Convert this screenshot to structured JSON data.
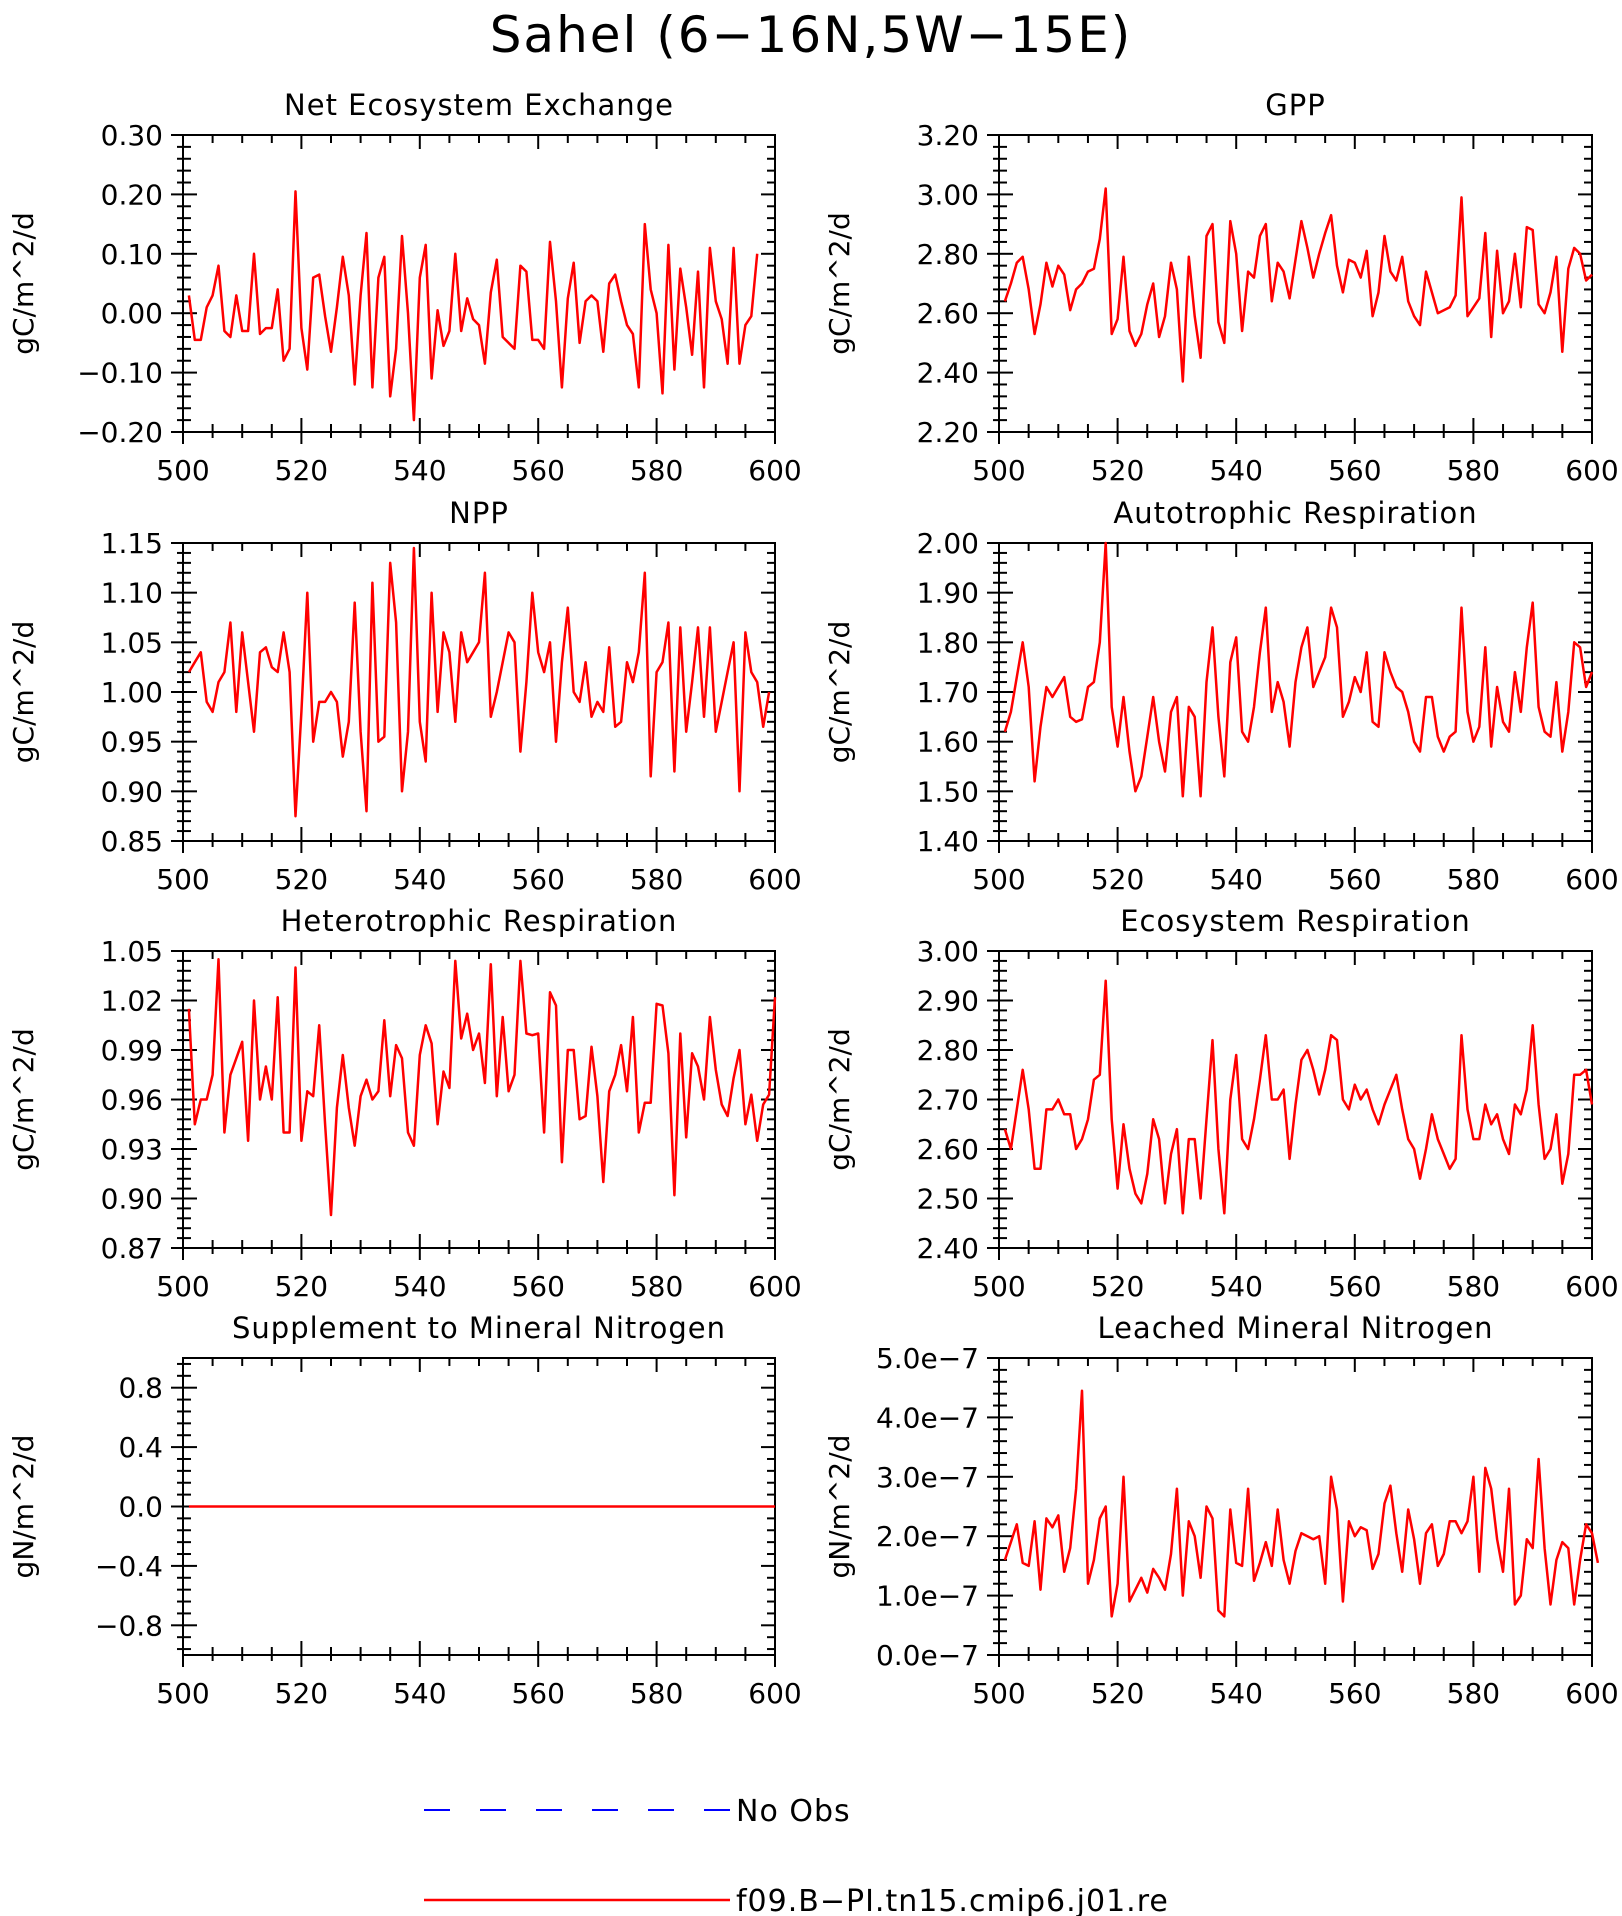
{
  "page_title": "Sahel (6−16N,5W−15E)",
  "legend": [
    {
      "label": "No Obs",
      "color": "#0000ff",
      "dash": true
    },
    {
      "label": "f09.B−PI.tn15.cmip6.j01.re",
      "color": "#ff0000",
      "dash": false
    }
  ],
  "chart_data": [
    {
      "type": "line",
      "title": "Net Ecosystem Exchange",
      "ylabel": "gC/m^2/d",
      "xlim": [
        500,
        600
      ],
      "ylim": [
        -0.2,
        0.3
      ],
      "xticks": [
        500,
        520,
        540,
        560,
        580,
        600
      ],
      "yticks": [
        -0.2,
        -0.1,
        0.0,
        0.1,
        0.2,
        0.3
      ],
      "ytick_labels": [
        "−0.20",
        "−0.10",
        "0.00",
        "0.10",
        "0.20",
        "0.30"
      ],
      "series": [
        {
          "color": "#ff0000",
          "x_start": 501,
          "x_step": 1,
          "values": [
            0.03,
            -0.045,
            -0.045,
            0.01,
            0.03,
            0.08,
            -0.03,
            -0.04,
            0.03,
            -0.03,
            -0.03,
            0.1,
            -0.035,
            -0.025,
            -0.025,
            0.04,
            -0.08,
            -0.06,
            0.205,
            -0.025,
            -0.095,
            0.06,
            0.065,
            -0.005,
            -0.065,
            0.01,
            0.095,
            0.03,
            -0.12,
            0.03,
            0.135,
            -0.125,
            0.06,
            0.095,
            -0.14,
            -0.06,
            0.13,
            0.0,
            -0.18,
            0.06,
            0.115,
            -0.11,
            0.005,
            -0.055,
            -0.03,
            0.1,
            -0.03,
            0.025,
            -0.01,
            -0.02,
            -0.085,
            0.035,
            0.09,
            -0.04,
            -0.05,
            -0.06,
            0.08,
            0.07,
            -0.045,
            -0.045,
            -0.06,
            0.12,
            0.02,
            -0.125,
            0.025,
            0.085,
            -0.05,
            0.02,
            0.03,
            0.02,
            -0.065,
            0.05,
            0.065,
            0.02,
            -0.02,
            -0.035,
            -0.125,
            0.15,
            0.04,
            0.0,
            -0.135,
            0.115,
            -0.095,
            0.075,
            0.01,
            -0.07,
            0.07,
            -0.125,
            0.11,
            0.02,
            -0.01,
            -0.085,
            0.11,
            -0.085,
            -0.02,
            -0.005,
            0.1
          ]
        }
      ]
    },
    {
      "type": "line",
      "title": "GPP",
      "ylabel": "gC/m^2/d",
      "xlim": [
        500,
        600
      ],
      "ylim": [
        2.2,
        3.2
      ],
      "xticks": [
        500,
        520,
        540,
        560,
        580,
        600
      ],
      "yticks": [
        2.2,
        2.4,
        2.6,
        2.8,
        3.0,
        3.2
      ],
      "ytick_labels": [
        "2.20",
        "2.40",
        "2.60",
        "2.80",
        "3.00",
        "3.20"
      ],
      "series": [
        {
          "color": "#ff0000",
          "x_start": 501,
          "x_step": 1,
          "values": [
            2.64,
            2.7,
            2.77,
            2.79,
            2.68,
            2.53,
            2.63,
            2.77,
            2.69,
            2.76,
            2.73,
            2.61,
            2.68,
            2.7,
            2.74,
            2.75,
            2.85,
            3.02,
            2.53,
            2.58,
            2.79,
            2.54,
            2.49,
            2.53,
            2.63,
            2.7,
            2.52,
            2.59,
            2.77,
            2.68,
            2.37,
            2.79,
            2.59,
            2.45,
            2.86,
            2.9,
            2.57,
            2.5,
            2.91,
            2.8,
            2.54,
            2.74,
            2.72,
            2.86,
            2.9,
            2.64,
            2.77,
            2.74,
            2.65,
            2.78,
            2.91,
            2.82,
            2.72,
            2.8,
            2.87,
            2.93,
            2.76,
            2.67,
            2.78,
            2.77,
            2.72,
            2.81,
            2.59,
            2.67,
            2.86,
            2.74,
            2.71,
            2.79,
            2.64,
            2.59,
            2.56,
            2.74,
            2.67,
            2.6,
            2.61,
            2.62,
            2.66,
            2.99,
            2.59,
            2.62,
            2.65,
            2.87,
            2.52,
            2.81,
            2.6,
            2.64,
            2.8,
            2.62,
            2.89,
            2.88,
            2.63,
            2.6,
            2.67,
            2.79,
            2.47,
            2.75,
            2.82,
            2.8,
            2.71,
            2.73
          ]
        }
      ]
    },
    {
      "type": "line",
      "title": "NPP",
      "ylabel": "gC/m^2/d",
      "xlim": [
        500,
        600
      ],
      "ylim": [
        0.85,
        1.15
      ],
      "xticks": [
        500,
        520,
        540,
        560,
        580,
        600
      ],
      "yticks": [
        0.85,
        0.9,
        0.95,
        1.0,
        1.05,
        1.1,
        1.15
      ],
      "ytick_labels": [
        "0.85",
        "0.90",
        "0.95",
        "1.00",
        "1.05",
        "1.10",
        "1.15"
      ],
      "series": [
        {
          "color": "#ff0000",
          "x_start": 501,
          "x_step": 1,
          "values": [
            1.02,
            1.03,
            1.04,
            0.99,
            0.98,
            1.01,
            1.02,
            1.07,
            0.98,
            1.06,
            1.01,
            0.96,
            1.04,
            1.045,
            1.025,
            1.02,
            1.06,
            1.02,
            0.875,
            0.98,
            1.1,
            0.95,
            0.99,
            0.99,
            1.0,
            0.99,
            0.935,
            0.97,
            1.09,
            0.96,
            0.88,
            1.11,
            0.95,
            0.955,
            1.13,
            1.07,
            0.9,
            0.96,
            1.145,
            0.97,
            0.93,
            1.1,
            0.98,
            1.06,
            1.04,
            0.97,
            1.06,
            1.03,
            1.04,
            1.05,
            1.12,
            0.975,
            1.0,
            1.03,
            1.06,
            1.05,
            0.94,
            1.01,
            1.1,
            1.04,
            1.02,
            1.05,
            0.95,
            1.03,
            1.085,
            1.0,
            0.99,
            1.03,
            0.975,
            0.99,
            0.98,
            1.045,
            0.965,
            0.97,
            1.03,
            1.01,
            1.04,
            1.12,
            0.915,
            1.02,
            1.03,
            1.07,
            0.92,
            1.065,
            0.96,
            1.01,
            1.065,
            0.975,
            1.065,
            0.96,
            0.99,
            1.02,
            1.05,
            0.9,
            1.06,
            1.02,
            1.01,
            0.965,
            1.0
          ]
        }
      ]
    },
    {
      "type": "line",
      "title": "Autotrophic Respiration",
      "ylabel": "gC/m^2/d",
      "xlim": [
        500,
        600
      ],
      "ylim": [
        1.4,
        2.0
      ],
      "xticks": [
        500,
        520,
        540,
        560,
        580,
        600
      ],
      "yticks": [
        1.4,
        1.5,
        1.6,
        1.7,
        1.8,
        1.9,
        2.0
      ],
      "ytick_labels": [
        "1.40",
        "1.50",
        "1.60",
        "1.70",
        "1.80",
        "1.90",
        "2.00"
      ],
      "series": [
        {
          "color": "#ff0000",
          "x_start": 501,
          "x_step": 1,
          "values": [
            1.62,
            1.66,
            1.73,
            1.8,
            1.71,
            1.52,
            1.63,
            1.71,
            1.69,
            1.71,
            1.73,
            1.65,
            1.64,
            1.645,
            1.71,
            1.72,
            1.8,
            2.0,
            1.67,
            1.59,
            1.69,
            1.58,
            1.5,
            1.53,
            1.61,
            1.69,
            1.6,
            1.54,
            1.66,
            1.69,
            1.49,
            1.67,
            1.65,
            1.49,
            1.72,
            1.83,
            1.65,
            1.53,
            1.76,
            1.81,
            1.62,
            1.6,
            1.67,
            1.78,
            1.87,
            1.66,
            1.72,
            1.68,
            1.59,
            1.72,
            1.79,
            1.83,
            1.71,
            1.74,
            1.77,
            1.87,
            1.83,
            1.65,
            1.68,
            1.73,
            1.7,
            1.78,
            1.64,
            1.63,
            1.78,
            1.74,
            1.71,
            1.7,
            1.66,
            1.6,
            1.58,
            1.69,
            1.69,
            1.61,
            1.58,
            1.61,
            1.62,
            1.87,
            1.66,
            1.6,
            1.63,
            1.79,
            1.59,
            1.71,
            1.64,
            1.62,
            1.74,
            1.66,
            1.79,
            1.88,
            1.67,
            1.62,
            1.61,
            1.72,
            1.58,
            1.66,
            1.8,
            1.79,
            1.71,
            1.74
          ]
        }
      ]
    },
    {
      "type": "line",
      "title": "Heterotrophic Respiration",
      "ylabel": "gC/m^2/d",
      "xlim": [
        500,
        600
      ],
      "ylim": [
        0.87,
        1.05
      ],
      "xticks": [
        500,
        520,
        540,
        560,
        580,
        600
      ],
      "yticks": [
        0.87,
        0.9,
        0.93,
        0.96,
        0.99,
        1.02,
        1.05
      ],
      "ytick_labels": [
        "0.87",
        "0.90",
        "0.93",
        "0.96",
        "0.99",
        "1.02",
        "1.05"
      ],
      "series": [
        {
          "color": "#ff0000",
          "x_start": 501,
          "x_step": 1,
          "values": [
            1.015,
            0.945,
            0.96,
            0.96,
            0.975,
            1.045,
            0.94,
            0.975,
            0.985,
            0.995,
            0.935,
            1.02,
            0.96,
            0.98,
            0.96,
            1.022,
            0.94,
            0.94,
            1.04,
            0.935,
            0.965,
            0.962,
            1.005,
            0.945,
            0.89,
            0.955,
            0.987,
            0.955,
            0.932,
            0.962,
            0.972,
            0.96,
            0.965,
            1.008,
            0.962,
            0.993,
            0.985,
            0.94,
            0.932,
            0.987,
            1.005,
            0.994,
            0.945,
            0.977,
            0.967,
            1.044,
            0.997,
            1.012,
            0.99,
            1.0,
            0.97,
            1.042,
            0.962,
            1.01,
            0.965,
            0.975,
            1.044,
            1.0,
            0.999,
            1.0,
            0.94,
            1.025,
            1.017,
            0.922,
            0.99,
            0.99,
            0.948,
            0.95,
            0.992,
            0.962,
            0.91,
            0.965,
            0.975,
            0.993,
            0.965,
            1.01,
            0.94,
            0.958,
            0.958,
            1.018,
            1.017,
            0.988,
            0.902,
            1.0,
            0.937,
            0.988,
            0.98,
            0.96,
            1.01,
            0.978,
            0.957,
            0.95,
            0.973,
            0.99,
            0.945,
            0.963,
            0.935,
            0.957,
            0.963,
            1.022
          ]
        }
      ]
    },
    {
      "type": "line",
      "title": "Ecosystem Respiration",
      "ylabel": "gC/m^2/d",
      "xlim": [
        500,
        600
      ],
      "ylim": [
        2.4,
        3.0
      ],
      "xticks": [
        500,
        520,
        540,
        560,
        580,
        600
      ],
      "yticks": [
        2.4,
        2.5,
        2.6,
        2.7,
        2.8,
        2.9,
        3.0
      ],
      "ytick_labels": [
        "2.40",
        "2.50",
        "2.60",
        "2.70",
        "2.80",
        "2.90",
        "3.00"
      ],
      "series": [
        {
          "color": "#ff0000",
          "x_start": 501,
          "x_step": 1,
          "values": [
            2.64,
            2.6,
            2.68,
            2.76,
            2.68,
            2.56,
            2.56,
            2.68,
            2.68,
            2.7,
            2.67,
            2.67,
            2.6,
            2.62,
            2.66,
            2.74,
            2.75,
            2.94,
            2.66,
            2.52,
            2.65,
            2.56,
            2.51,
            2.49,
            2.55,
            2.66,
            2.62,
            2.49,
            2.59,
            2.64,
            2.47,
            2.62,
            2.62,
            2.5,
            2.66,
            2.82,
            2.6,
            2.47,
            2.7,
            2.79,
            2.62,
            2.6,
            2.66,
            2.74,
            2.83,
            2.7,
            2.7,
            2.72,
            2.58,
            2.69,
            2.78,
            2.8,
            2.76,
            2.71,
            2.76,
            2.83,
            2.82,
            2.7,
            2.68,
            2.73,
            2.7,
            2.72,
            2.68,
            2.65,
            2.69,
            2.72,
            2.75,
            2.68,
            2.62,
            2.6,
            2.54,
            2.6,
            2.67,
            2.62,
            2.59,
            2.56,
            2.58,
            2.83,
            2.68,
            2.62,
            2.62,
            2.69,
            2.65,
            2.67,
            2.62,
            2.59,
            2.69,
            2.67,
            2.72,
            2.85,
            2.69,
            2.58,
            2.6,
            2.67,
            2.53,
            2.59,
            2.75,
            2.75,
            2.76,
            2.69
          ]
        }
      ]
    },
    {
      "type": "line",
      "title": "Supplement to Mineral Nitrogen",
      "ylabel": "gN/m^2/d",
      "xlim": [
        500,
        600
      ],
      "ylim": [
        -1.0,
        1.0
      ],
      "xticks": [
        500,
        520,
        540,
        560,
        580,
        600
      ],
      "yticks": [
        -0.8,
        -0.4,
        0.0,
        0.4,
        0.8
      ],
      "ytick_labels": [
        "−0.8",
        "−0.4",
        "0.0",
        "0.4",
        "0.8"
      ],
      "series": [
        {
          "color": "#ff0000",
          "x": [
            501,
            600
          ],
          "values": [
            0.0,
            0.0
          ]
        }
      ]
    },
    {
      "type": "line",
      "title": "Leached Mineral Nitrogen",
      "ylabel": "gN/m^2/d",
      "xlim": [
        500,
        600
      ],
      "ylim": [
        0.0,
        5e-07
      ],
      "xticks": [
        500,
        520,
        540,
        560,
        580,
        600
      ],
      "yticks": [
        0.0,
        1e-07,
        2e-07,
        3e-07,
        4e-07,
        5e-07
      ],
      "ytick_labels": [
        "0.0e−7",
        "1.0e−7",
        "2.0e−7",
        "3.0e−7",
        "4.0e−7",
        "5.0e−7"
      ],
      "series": [
        {
          "color": "#ff0000",
          "x_start": 501,
          "x_step": 1,
          "values": [
            1.6e-07,
            1.9e-07,
            2.2e-07,
            1.55e-07,
            1.5e-07,
            2.25e-07,
            1.1e-07,
            2.3e-07,
            2.15e-07,
            2.35e-07,
            1.4e-07,
            1.8e-07,
            2.8e-07,
            4.45e-07,
            1.2e-07,
            1.6e-07,
            2.3e-07,
            2.5e-07,
            6.5e-08,
            1.2e-07,
            3e-07,
            9e-08,
            1.1e-07,
            1.3e-07,
            1.05e-07,
            1.45e-07,
            1.3e-07,
            1.1e-07,
            1.7e-07,
            2.8e-07,
            1e-07,
            2.25e-07,
            2e-07,
            1.3e-07,
            2.5e-07,
            2.3e-07,
            7.5e-08,
            6.5e-08,
            2.45e-07,
            1.55e-07,
            1.5e-07,
            2.8e-07,
            1.25e-07,
            1.55e-07,
            1.9e-07,
            1.5e-07,
            2.45e-07,
            1.6e-07,
            1.2e-07,
            1.75e-07,
            2.05e-07,
            2e-07,
            1.95e-07,
            2e-07,
            1.2e-07,
            3e-07,
            2.45e-07,
            9e-08,
            2.25e-07,
            2e-07,
            2.15e-07,
            2.1e-07,
            1.45e-07,
            1.7e-07,
            2.55e-07,
            2.85e-07,
            2.05e-07,
            1.4e-07,
            2.45e-07,
            1.95e-07,
            1.2e-07,
            2.05e-07,
            2.2e-07,
            1.5e-07,
            1.7e-07,
            2.25e-07,
            2.25e-07,
            2.05e-07,
            2.25e-07,
            3e-07,
            1.4e-07,
            3.15e-07,
            2.8e-07,
            1.95e-07,
            1.4e-07,
            2.8e-07,
            8.5e-08,
            1e-07,
            1.95e-07,
            1.8e-07,
            3.3e-07,
            1.8e-07,
            8.5e-08,
            1.6e-07,
            1.9e-07,
            1.8e-07,
            8.5e-08,
            1.6e-07,
            2.2e-07,
            2.05e-07,
            1.55e-07
          ]
        }
      ]
    }
  ]
}
